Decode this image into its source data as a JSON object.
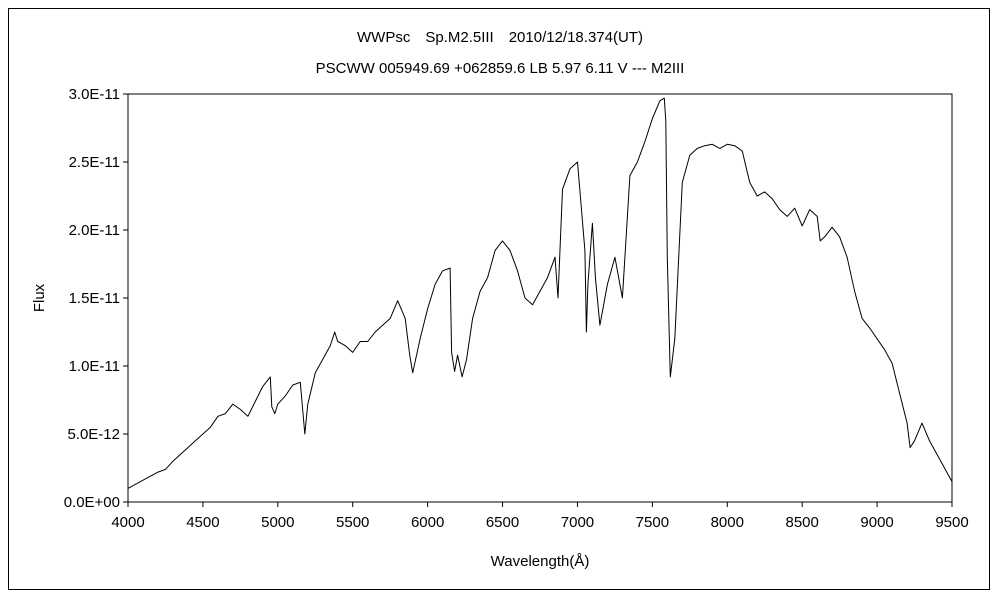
{
  "chart_data": {
    "type": "line",
    "title": "WWPsc　Sp.M2.5III　2010/12/18.374(UT)",
    "subtitle": "PSCWW 005949.69 +062859.6 LB 5.97 6.11 V --- M2III",
    "xlabel": "Wavelength(Å)",
    "ylabel": "Flux",
    "xlim": [
      4000,
      9500
    ],
    "ylim": [
      0,
      3e-11
    ],
    "x_ticks": [
      4000,
      4500,
      5000,
      5500,
      6000,
      6500,
      7000,
      7500,
      8000,
      8500,
      9000,
      9500
    ],
    "y_ticks": [
      0,
      5e-12,
      1e-11,
      1.5e-11,
      2e-11,
      2.5e-11,
      3e-11
    ],
    "y_tick_labels": [
      "0.0E+00",
      "5.0E-12",
      "1.0E-11",
      "1.5E-11",
      "2.0E-11",
      "2.5E-11",
      "3.0E-11"
    ],
    "grid": false,
    "legend": "none",
    "series": [
      {
        "color": "#000000",
        "x": [
          4000,
          4100,
          4200,
          4250,
          4300,
          4400,
          4450,
          4500,
          4550,
          4600,
          4650,
          4700,
          4750,
          4800,
          4850,
          4900,
          4950,
          4960,
          4980,
          5000,
          5050,
          5100,
          5150,
          5180,
          5200,
          5250,
          5300,
          5350,
          5380,
          5400,
          5450,
          5500,
          5550,
          5600,
          5650,
          5700,
          5750,
          5800,
          5850,
          5880,
          5900,
          5950,
          6000,
          6050,
          6100,
          6150,
          6160,
          6180,
          6200,
          6230,
          6260,
          6300,
          6350,
          6400,
          6450,
          6500,
          6550,
          6600,
          6650,
          6700,
          6750,
          6800,
          6850,
          6870,
          6900,
          6950,
          7000,
          7050,
          7060,
          7070,
          7100,
          7120,
          7150,
          7200,
          7250,
          7300,
          7350,
          7400,
          7450,
          7500,
          7550,
          7580,
          7590,
          7600,
          7620,
          7650,
          7700,
          7750,
          7800,
          7850,
          7900,
          7950,
          8000,
          8050,
          8100,
          8150,
          8200,
          8250,
          8300,
          8350,
          8400,
          8450,
          8500,
          8550,
          8600,
          8620,
          8650,
          8700,
          8750,
          8800,
          8850,
          8900,
          8950,
          9000,
          9050,
          9100,
          9150,
          9200,
          9220,
          9250,
          9300,
          9350,
          9400,
          9450,
          9500
        ],
        "y": [
          1e-12,
          1.6e-12,
          2.2e-12,
          2.4e-12,
          3e-12,
          4e-12,
          4.5e-12,
          5e-12,
          5.5e-12,
          6.3e-12,
          6.5e-12,
          7.2e-12,
          6.8e-12,
          6.3e-12,
          7.4e-12,
          8.5e-12,
          9.2e-12,
          7e-12,
          6.5e-12,
          7.2e-12,
          7.8e-12,
          8.6e-12,
          8.8e-12,
          5e-12,
          7.2e-12,
          9.5e-12,
          1.05e-11,
          1.15e-11,
          1.25e-11,
          1.18e-11,
          1.15e-11,
          1.1e-11,
          1.18e-11,
          1.18e-11,
          1.25e-11,
          1.3e-11,
          1.35e-11,
          1.48e-11,
          1.35e-11,
          1.08e-11,
          9.5e-12,
          1.2e-11,
          1.42e-11,
          1.6e-11,
          1.7e-11,
          1.72e-11,
          1.1e-11,
          9.6e-12,
          1.08e-11,
          9.2e-12,
          1.05e-11,
          1.35e-11,
          1.55e-11,
          1.65e-11,
          1.85e-11,
          1.92e-11,
          1.85e-11,
          1.7e-11,
          1.5e-11,
          1.45e-11,
          1.55e-11,
          1.65e-11,
          1.8e-11,
          1.5e-11,
          2.3e-11,
          2.45e-11,
          2.5e-11,
          1.85e-11,
          1.25e-11,
          1.6e-11,
          2.05e-11,
          1.65e-11,
          1.3e-11,
          1.6e-11,
          1.8e-11,
          1.5e-11,
          2.4e-11,
          2.5e-11,
          2.65e-11,
          2.82e-11,
          2.95e-11,
          2.97e-11,
          2.8e-11,
          1.8e-11,
          9.2e-12,
          1.2e-11,
          2.35e-11,
          2.55e-11,
          2.6e-11,
          2.62e-11,
          2.63e-11,
          2.6e-11,
          2.63e-11,
          2.62e-11,
          2.58e-11,
          2.35e-11,
          2.25e-11,
          2.28e-11,
          2.23e-11,
          2.15e-11,
          2.1e-11,
          2.16e-11,
          2.03e-11,
          2.15e-11,
          2.1e-11,
          1.92e-11,
          1.95e-11,
          2.02e-11,
          1.95e-11,
          1.8e-11,
          1.55e-11,
          1.35e-11,
          1.28e-11,
          1.2e-11,
          1.12e-11,
          1.02e-11,
          8e-12,
          5.8e-12,
          4e-12,
          4.5e-12,
          5.8e-12,
          4.5e-12,
          3.5e-12,
          2.5e-12,
          1.5e-12
        ]
      }
    ]
  }
}
